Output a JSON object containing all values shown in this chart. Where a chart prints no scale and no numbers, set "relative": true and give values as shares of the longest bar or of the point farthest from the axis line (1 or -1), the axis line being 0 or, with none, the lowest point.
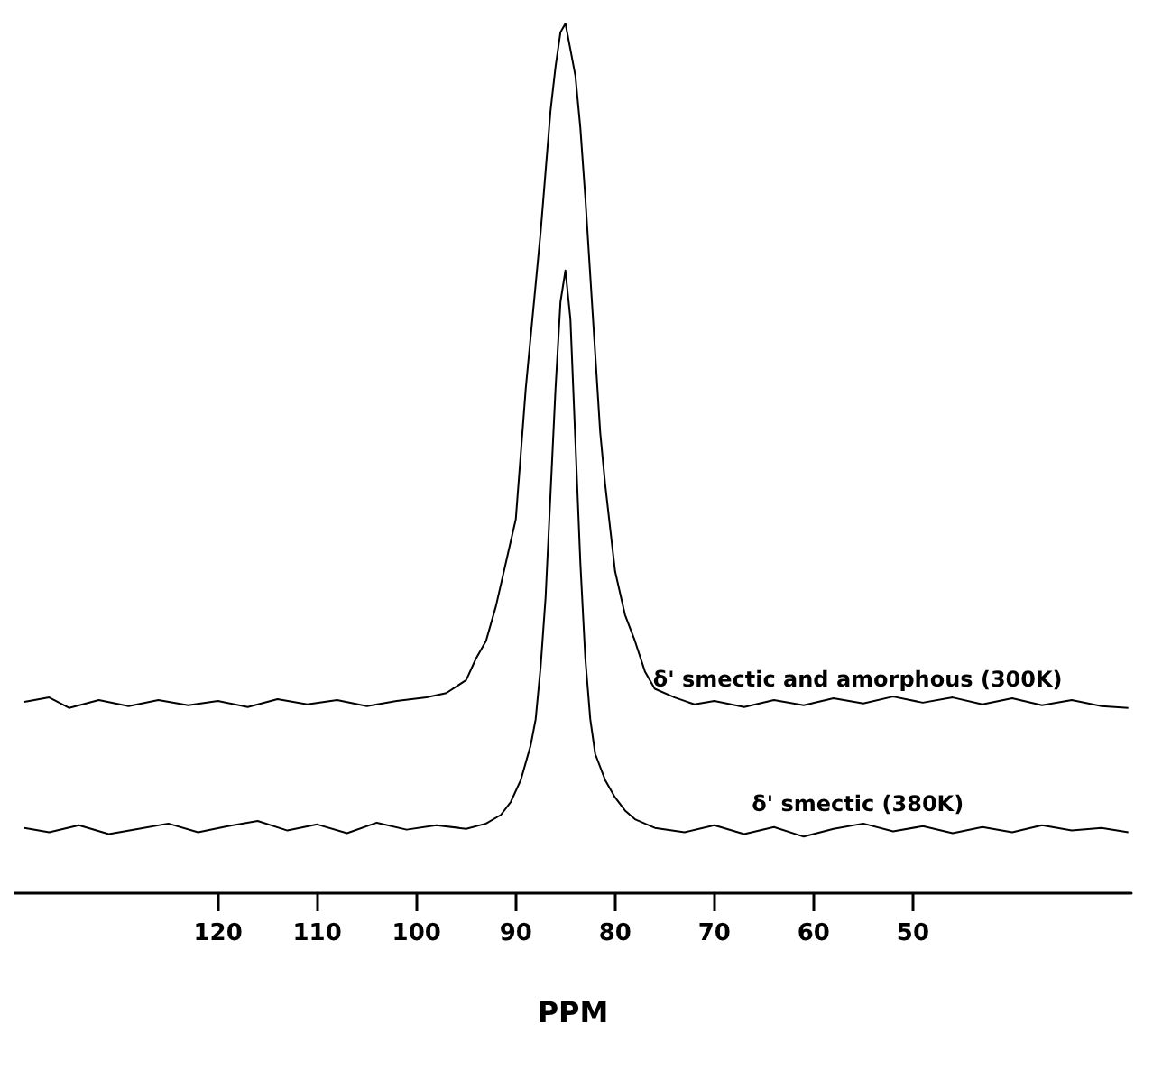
{
  "chart_data": {
    "type": "line",
    "relative": true,
    "xlabel": "PPM",
    "xlim": [
      140.5,
      28
    ],
    "xticks": [
      120,
      110,
      100,
      90,
      80,
      70,
      60,
      50
    ],
    "grid": false,
    "marker": "none",
    "line_style": "solid",
    "series": [
      {
        "name": "δ' smectic and amorphous (300K)",
        "color": "#000000",
        "x": [
          139.5,
          137,
          135,
          132,
          129,
          126,
          123,
          120,
          117,
          114,
          111,
          108,
          105,
          102,
          99,
          97,
          95,
          94,
          93,
          92,
          91,
          90,
          89,
          88,
          87.5,
          87,
          86.5,
          86,
          85.5,
          85,
          84.5,
          84,
          83.5,
          83,
          82.5,
          82,
          81.5,
          81,
          80,
          79,
          78,
          77,
          76,
          74,
          72,
          70,
          67,
          64,
          61,
          58,
          55,
          52,
          49,
          46,
          43,
          40,
          37,
          34,
          31,
          28.3
        ],
        "values": [
          0.22,
          0.225,
          0.213,
          0.222,
          0.215,
          0.222,
          0.216,
          0.221,
          0.214,
          0.223,
          0.217,
          0.222,
          0.215,
          0.221,
          0.225,
          0.23,
          0.245,
          0.27,
          0.29,
          0.33,
          0.38,
          0.43,
          0.58,
          0.7,
          0.76,
          0.83,
          0.9,
          0.95,
          0.99,
          1,
          0.97,
          0.94,
          0.88,
          0.8,
          0.71,
          0.62,
          0.53,
          0.47,
          0.37,
          0.32,
          0.29,
          0.255,
          0.235,
          0.225,
          0.217,
          0.221,
          0.214,
          0.222,
          0.216,
          0.224,
          0.218,
          0.226,
          0.219,
          0.225,
          0.217,
          0.224,
          0.216,
          0.222,
          0.215,
          0.213
        ]
      },
      {
        "name": "δ' smectic (380K)",
        "color": "#000000",
        "x": [
          139.5,
          137,
          134,
          131,
          128,
          125,
          122,
          119,
          116,
          113,
          110,
          107,
          104,
          101,
          98,
          95,
          93,
          91.5,
          90.5,
          89.5,
          88.5,
          88,
          87.5,
          87,
          86.5,
          86,
          85.5,
          85,
          84.5,
          84,
          83.5,
          83,
          82.5,
          82,
          81,
          80,
          79,
          78,
          76,
          73,
          70,
          67,
          64,
          61,
          58,
          55,
          52,
          49,
          46,
          43,
          40,
          37,
          34,
          31,
          28.3
        ],
        "values": [
          0.075,
          0.07,
          0.078,
          0.068,
          0.074,
          0.08,
          0.07,
          0.077,
          0.083,
          0.072,
          0.079,
          0.069,
          0.081,
          0.073,
          0.078,
          0.074,
          0.08,
          0.09,
          0.105,
          0.13,
          0.17,
          0.2,
          0.26,
          0.34,
          0.46,
          0.58,
          0.68,
          0.716,
          0.66,
          0.52,
          0.38,
          0.27,
          0.2,
          0.16,
          0.13,
          0.11,
          0.095,
          0.085,
          0.075,
          0.07,
          0.078,
          0.068,
          0.076,
          0.065,
          0.074,
          0.08,
          0.071,
          0.077,
          0.069,
          0.076,
          0.07,
          0.078,
          0.072,
          0.075,
          0.07
        ]
      }
    ]
  }
}
